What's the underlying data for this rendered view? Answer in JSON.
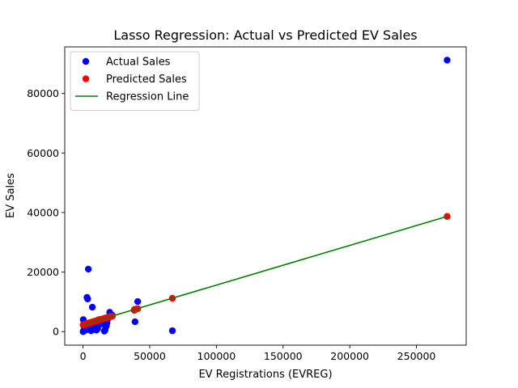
{
  "chart_data": {
    "type": "scatter",
    "title": "Lasso Regression: Actual vs Predicted EV Sales",
    "xlabel": "EV Registrations (EVREG)",
    "ylabel": "EV Sales",
    "xlim": [
      -13700,
      287300
    ],
    "ylim": [
      -4550,
      95650
    ],
    "xticks": [
      0,
      50000,
      100000,
      150000,
      200000,
      250000
    ],
    "yticks": [
      0,
      20000,
      40000,
      60000,
      80000
    ],
    "grid": false,
    "legend_position": "upper-left",
    "series": [
      {
        "name": "Actual Sales",
        "kind": "scatter",
        "color": "#0000ff",
        "points": [
          [
            273000,
            91200
          ],
          [
            67000,
            300
          ],
          [
            41000,
            10100
          ],
          [
            39000,
            3300
          ],
          [
            38500,
            7200
          ],
          [
            22000,
            5500
          ],
          [
            21000,
            5200
          ],
          [
            20000,
            6500
          ],
          [
            19000,
            4500
          ],
          [
            18000,
            3000
          ],
          [
            17500,
            2000
          ],
          [
            17000,
            1500
          ],
          [
            16500,
            500
          ],
          [
            16000,
            200
          ],
          [
            15000,
            4000
          ],
          [
            14000,
            3500
          ],
          [
            13000,
            2500
          ],
          [
            12000,
            4000
          ],
          [
            11000,
            1000
          ],
          [
            10000,
            500
          ],
          [
            9000,
            2000
          ],
          [
            8000,
            1000
          ],
          [
            7000,
            8200
          ],
          [
            6000,
            300
          ],
          [
            5000,
            2500
          ],
          [
            4000,
            21000
          ],
          [
            3500,
            11000
          ],
          [
            3000,
            11500
          ],
          [
            2500,
            1000
          ],
          [
            2000,
            500
          ],
          [
            1500,
            3000
          ],
          [
            1000,
            800
          ],
          [
            500,
            2000
          ],
          [
            300,
            200
          ],
          [
            200,
            4000
          ],
          [
            100,
            0
          ]
        ]
      },
      {
        "name": "Predicted Sales",
        "kind": "scatter",
        "color": "#ff0000",
        "points": [
          [
            273000,
            38700
          ],
          [
            67000,
            11200
          ],
          [
            41000,
            7700
          ],
          [
            39000,
            7500
          ],
          [
            38500,
            7400
          ],
          [
            22000,
            5200
          ],
          [
            21000,
            5100
          ],
          [
            20000,
            5000
          ],
          [
            19000,
            4800
          ],
          [
            18000,
            4700
          ],
          [
            17500,
            4600
          ],
          [
            17000,
            4600
          ],
          [
            16500,
            4500
          ],
          [
            16000,
            4400
          ],
          [
            15000,
            4300
          ],
          [
            14000,
            4200
          ],
          [
            13000,
            4000
          ],
          [
            12000,
            3900
          ],
          [
            11000,
            3800
          ],
          [
            10000,
            3600
          ],
          [
            9000,
            3500
          ],
          [
            8000,
            3400
          ],
          [
            7000,
            3200
          ],
          [
            6000,
            3100
          ],
          [
            5000,
            3000
          ],
          [
            4000,
            2800
          ],
          [
            3500,
            2700
          ],
          [
            3000,
            2700
          ],
          [
            2500,
            2600
          ],
          [
            2000,
            2600
          ],
          [
            1500,
            2500
          ],
          [
            1000,
            2400
          ],
          [
            500,
            2400
          ],
          [
            300,
            2300
          ],
          [
            200,
            2300
          ],
          [
            100,
            2300
          ]
        ]
      },
      {
        "name": "Regression Line",
        "kind": "line",
        "color": "#008000",
        "points": [
          [
            0,
            2300
          ],
          [
            273000,
            38700
          ]
        ]
      }
    ]
  }
}
